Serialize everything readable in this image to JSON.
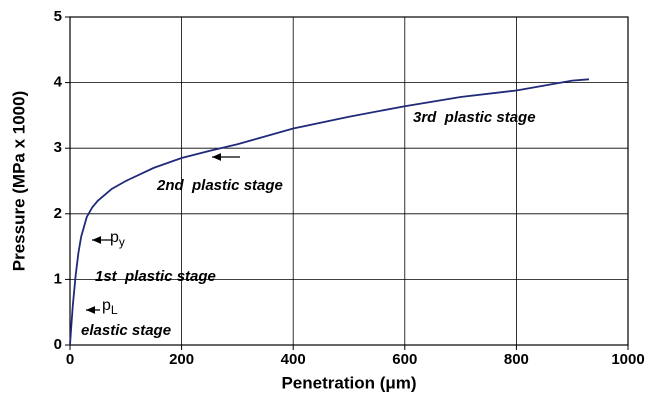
{
  "chart_data": {
    "type": "line",
    "x_label": "Penetration (μm)",
    "y_label": "Pressure (MPa x 1000)",
    "x": [
      0,
      2,
      5,
      10,
      15,
      20,
      30,
      40,
      50,
      75,
      100,
      150,
      200,
      250,
      300,
      400,
      500,
      600,
      700,
      800,
      900,
      930
    ],
    "series": [
      {
        "color": "#1f2a7a",
        "values": [
          0,
          0.25,
          0.6,
          1.05,
          1.4,
          1.65,
          1.95,
          2.1,
          2.2,
          2.38,
          2.5,
          2.7,
          2.85,
          2.96,
          3.06,
          3.3,
          3.48,
          3.64,
          3.78,
          3.88,
          4.03,
          4.05
        ]
      }
    ],
    "xlim": [
      0,
      1000
    ],
    "xticks": [
      0,
      200,
      400,
      600,
      800,
      1000
    ],
    "ylim": [
      0,
      5
    ],
    "yticks": [
      0,
      1,
      2,
      3,
      4,
      5
    ],
    "grid": true,
    "annotations": [
      {
        "text": "elastic stage"
      },
      {
        "text": "p",
        "subscript": "L"
      },
      {
        "text": "1st  plastic stage"
      },
      {
        "text": "p",
        "subscript": "y"
      },
      {
        "text": "2nd  plastic stage"
      },
      {
        "text": "3rd  plastic stage"
      }
    ]
  }
}
